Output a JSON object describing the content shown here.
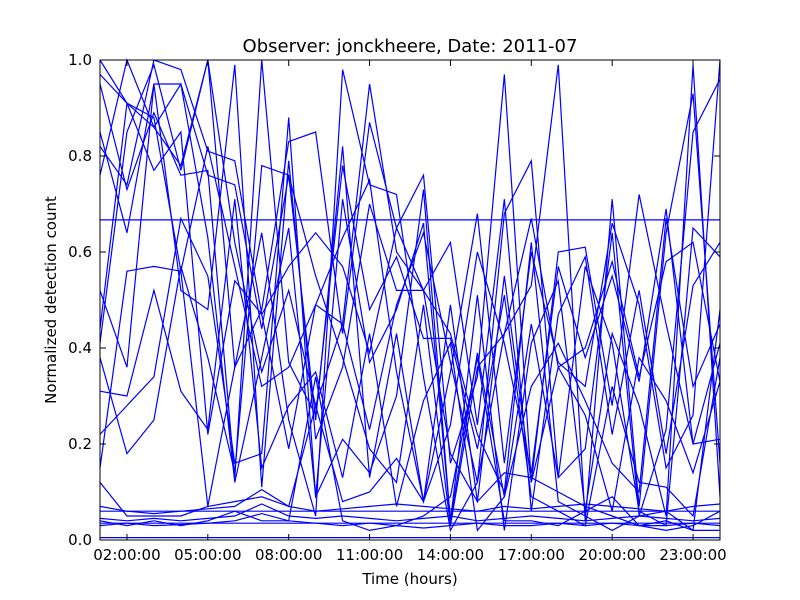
{
  "chart_data": {
    "type": "line",
    "title": "Observer: jonckheere, Date: 2011-07",
    "xlabel": "Time (hours)",
    "ylabel": "Normalized detection count",
    "x": [
      "01:00:00",
      "02:00:00",
      "03:00:00",
      "04:00:00",
      "05:00:00",
      "06:00:00",
      "07:00:00",
      "08:00:00",
      "09:00:00",
      "10:00:00",
      "11:00:00",
      "12:00:00",
      "13:00:00",
      "14:00:00",
      "15:00:00",
      "16:00:00",
      "17:00:00",
      "18:00:00",
      "19:00:00",
      "20:00:00",
      "21:00:00",
      "22:00:00",
      "23:00:00",
      "24:00:00"
    ],
    "xticks": [
      "02:00:00",
      "05:00:00",
      "08:00:00",
      "11:00:00",
      "14:00:00",
      "17:00:00",
      "20:00:00",
      "23:00:00"
    ],
    "yticks": [
      "0.0",
      "0.2",
      "0.4",
      "0.6",
      "0.8",
      "1.0"
    ],
    "ylim": [
      0,
      1
    ],
    "grid": false,
    "line_color": "#0000ff",
    "series": [
      {
        "values": [
          0.667,
          0.667,
          0.667,
          0.667,
          0.667,
          0.667,
          0.667,
          0.667,
          0.667,
          0.667,
          0.667,
          0.667,
          0.667,
          0.667,
          0.667,
          0.667,
          0.667,
          0.667,
          0.667,
          0.667,
          0.667,
          0.667,
          0.667,
          0.667
        ]
      },
      {
        "values": [
          0.06,
          0.06,
          0.06,
          0.06,
          0.06,
          0.06,
          0.06,
          0.06,
          0.06,
          0.06,
          0.06,
          0.06,
          0.06,
          0.06,
          0.06,
          0.06,
          0.06,
          0.06,
          0.06,
          0.06,
          0.06,
          0.06,
          0.06,
          0.06
        ]
      },
      {
        "values": [
          0.035,
          0.035,
          0.035,
          0.035,
          0.035,
          0.035,
          0.035,
          0.035,
          0.035,
          0.035,
          0.035,
          0.035,
          0.035,
          0.035,
          0.035,
          0.035,
          0.035,
          0.035,
          0.035,
          0.035,
          0.035,
          0.035,
          0.035,
          0.035
        ]
      },
      {
        "values": [
          0.005,
          0.005,
          0.005,
          0.005,
          0.005,
          0.005,
          0.005,
          0.005,
          0.005,
          0.005,
          0.005,
          0.005,
          0.005,
          0.005,
          0.005,
          0.005,
          0.005,
          0.005,
          0.005,
          0.005,
          0.005,
          0.005,
          0.005,
          0.005
        ]
      },
      {
        "values": [
          0.07,
          0.06,
          0.055,
          0.06,
          0.065,
          0.07,
          0.105,
          0.07,
          0.06,
          0.065,
          0.07,
          0.075,
          0.07,
          0.065,
          0.06,
          0.07,
          0.065,
          0.07,
          0.075,
          0.07,
          0.065,
          0.06,
          0.07,
          0.075
        ]
      },
      {
        "values": [
          0.045,
          0.04,
          0.045,
          0.04,
          0.045,
          0.05,
          0.075,
          0.05,
          0.045,
          0.05,
          0.045,
          0.04,
          0.045,
          0.05,
          0.04,
          0.045,
          0.05,
          0.045,
          0.04,
          0.045,
          0.05,
          0.045,
          0.04,
          0.045
        ]
      },
      {
        "values": [
          0.03,
          0.035,
          0.03,
          0.032,
          0.035,
          0.04,
          0.055,
          0.04,
          0.035,
          0.03,
          0.035,
          0.03,
          0.025,
          0.03,
          0.035,
          0.03,
          0.03,
          0.035,
          0.03,
          0.035,
          0.03,
          0.03,
          0.035,
          0.03
        ]
      },
      {
        "values": [
          0.76,
          1.0,
          0.86,
          0.78,
          1.0,
          0.62,
          0.35,
          0.52,
          0.28,
          0.45,
          0.95,
          0.6,
          0.52,
          0.18,
          0.08,
          0.55,
          0.12,
          0.36,
          0.4,
          0.58,
          0.34,
          0.58,
          0.62,
          0.33
        ]
      },
      {
        "values": [
          0.95,
          0.73,
          0.89,
          0.76,
          0.77,
          0.13,
          1.0,
          0.37,
          0.26,
          0.78,
          0.48,
          0.59,
          0.42,
          0.42,
          0.19,
          0.51,
          0.09,
          0.06,
          0.03,
          0.32,
          0.12,
          0.11,
          0.05,
          0.38
        ]
      },
      {
        "values": [
          0.41,
          0.85,
          0.99,
          0.77,
          1.0,
          0.36,
          0.48,
          0.83,
          0.85,
          0.43,
          0.87,
          0.65,
          0.76,
          0.16,
          0.34,
          0.97,
          0.12,
          0.6,
          0.61,
          0.28,
          0.72,
          0.45,
          0.2,
          0.41
        ]
      },
      {
        "values": [
          0.15,
          0.56,
          0.57,
          0.56,
          0.07,
          0.36,
          0.64,
          0.25,
          0.05,
          0.98,
          0.74,
          0.72,
          0.34,
          0.02,
          0.12,
          0.43,
          0.53,
          0.99,
          0.04,
          0.71,
          0.07,
          0.64,
          0.93,
          0.16
        ]
      },
      {
        "values": [
          0.82,
          0.74,
          1.0,
          0.98,
          0.81,
          0.79,
          0.47,
          0.57,
          0.64,
          0.57,
          0.39,
          0.65,
          0.52,
          0.62,
          0.24,
          0.71,
          0.06,
          0.47,
          0.59,
          0.22,
          0.52,
          0.18,
          0.53,
          0.62
        ]
      },
      {
        "values": [
          0.38,
          0.18,
          0.25,
          0.57,
          0.38,
          0.14,
          0.78,
          0.76,
          0.55,
          0.38,
          0.19,
          0.12,
          0.49,
          0.03,
          0.36,
          0.43,
          0.67,
          0.36,
          0.26,
          0.06,
          0.38,
          0.29,
          0.14,
          0.33
        ]
      },
      {
        "values": [
          0.31,
          0.3,
          0.52,
          0.31,
          0.23,
          0.71,
          0.15,
          0.28,
          0.35,
          0.13,
          0.43,
          0.07,
          0.29,
          0.41,
          0.02,
          0.09,
          0.32,
          0.41,
          0.29,
          0.16,
          0.1,
          0.67,
          0.32,
          0.45
        ]
      },
      {
        "values": [
          0.97,
          0.91,
          0.86,
          0.95,
          0.63,
          0.12,
          0.38,
          0.65,
          0.09,
          0.71,
          0.37,
          0.48,
          0.66,
          0.04,
          0.39,
          0.09,
          0.45,
          0.13,
          0.57,
          0.41,
          0.06,
          0.03,
          0.65,
          0.59
        ]
      },
      {
        "values": [
          1.0,
          0.91,
          0.77,
          0.85,
          0.22,
          0.54,
          0.47,
          0.19,
          0.49,
          0.63,
          0.75,
          0.35,
          0.08,
          0.24,
          0.6,
          0.41,
          0.14,
          0.57,
          0.38,
          0.55,
          0.33,
          0.69,
          0.2,
          0.21
        ]
      },
      {
        "values": [
          0.44,
          0.91,
          0.88,
          0.56,
          0.82,
          0.57,
          0.32,
          0.36,
          0.49,
          0.45,
          0.23,
          0.49,
          0.64,
          0.37,
          0.12,
          0.68,
          0.79,
          0.13,
          0.19,
          0.64,
          0.05,
          0.23,
          0.85,
          0.96
        ]
      },
      {
        "values": [
          0.85,
          0.64,
          0.95,
          0.95,
          0.76,
          0.74,
          0.44,
          0.76,
          0.25,
          0.82,
          0.13,
          0.43,
          0.08,
          0.35,
          0.68,
          0.16,
          0.6,
          0.37,
          0.32,
          0.66,
          0.49,
          0.15,
          0.26,
          1.0
        ]
      },
      {
        "values": [
          0.22,
          0.28,
          0.34,
          0.67,
          0.55,
          0.16,
          0.18,
          0.88,
          0.09,
          0.21,
          0.14,
          0.3,
          0.73,
          0.04,
          0.51,
          0.02,
          0.41,
          0.54,
          0.06,
          0.43,
          0.28,
          0.05,
          0.99,
          0.09
        ]
      },
      {
        "values": [
          0.52,
          0.36,
          0.95,
          0.52,
          0.48,
          0.99,
          0.11,
          0.79,
          0.21,
          0.36,
          0.7,
          0.52,
          0.52,
          0.43,
          0.22,
          0.1,
          0.62,
          0.08,
          0.05,
          0.02,
          0.05,
          0.06,
          0.02,
          0.48
        ]
      },
      {
        "values": [
          0.04,
          0.03,
          0.04,
          0.03,
          0.04,
          0.06,
          0.04,
          0.04,
          0.34,
          0.04,
          0.02,
          0.03,
          0.05,
          0.09,
          0.38,
          0.04,
          0.04,
          0.03,
          0.06,
          0.09,
          0.03,
          0.02,
          0.03,
          0.06
        ]
      },
      {
        "values": [
          0.12,
          0.05,
          0.05,
          0.05,
          0.07,
          0.08,
          0.09,
          0.07,
          0.28,
          0.08,
          0.1,
          0.17,
          0.08,
          0.49,
          0.08,
          0.14,
          0.13,
          0.1,
          0.07,
          0.05,
          0.03,
          0.04,
          0.02,
          0.02
        ]
      }
    ]
  }
}
